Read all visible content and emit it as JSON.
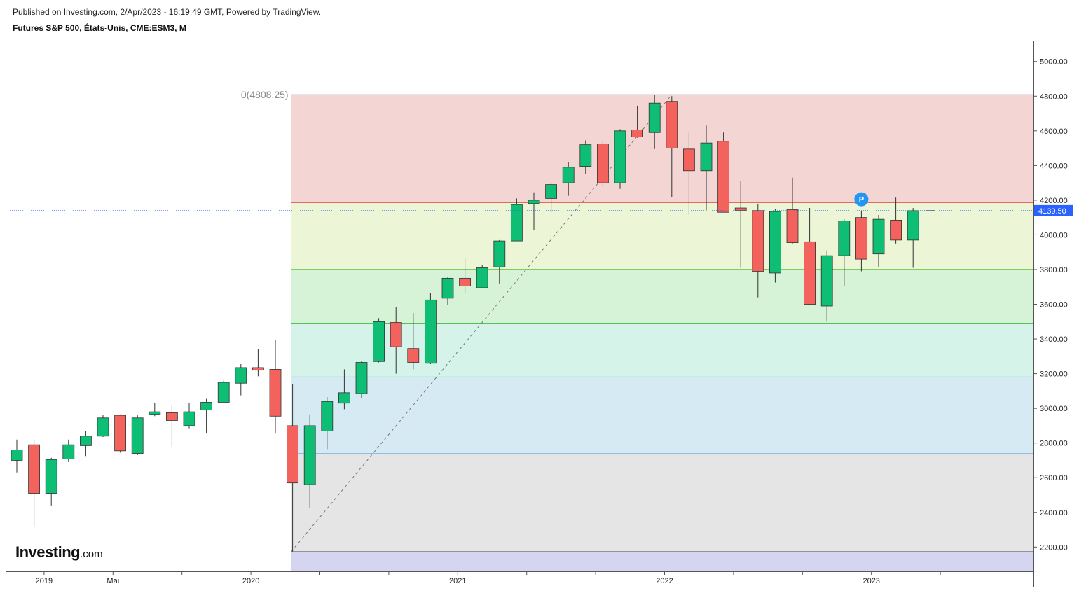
{
  "header": {
    "published": "Published on Investing.com, 2/Apr/2023 - 16:19:49 GMT, Powered by TradingView.",
    "symbol": "Futures S&P 500, États-Unis, CME:ESM3, M"
  },
  "logo": {
    "name": "Investing",
    "suffix": ".com"
  },
  "colors": {
    "up": "#0ebe74",
    "down": "#f3625c",
    "last_price_tag": "#2962ff"
  },
  "chart_data": {
    "type": "candlestick",
    "interval": "M",
    "ylim": [
      2060,
      5120
    ],
    "yticks": [
      2200,
      2400,
      2600,
      2800,
      3000,
      3200,
      3400,
      3600,
      3800,
      4000,
      4200,
      4400,
      4600,
      4800,
      5000
    ],
    "ytick_labels": [
      "2200.00",
      "2400.00",
      "2600.00",
      "2800.00",
      "3000.00",
      "3200.00",
      "3400.00",
      "3600.00",
      "3800.00",
      "4000.00",
      "4200.00",
      "4400.00",
      "4600.00",
      "4800.00",
      "5000.00"
    ],
    "x_labels": [
      {
        "label": "2019",
        "index": 2
      },
      {
        "label": "Mai",
        "index": 6
      },
      {
        "label": "2020",
        "index": 14
      },
      {
        "label": "2021",
        "index": 26
      },
      {
        "label": "2022",
        "index": 38
      },
      {
        "label": "2023",
        "index": 50
      }
    ],
    "last_price": 4139.5,
    "last_price_label": "4139.50",
    "marker": {
      "label": "P",
      "index": 49,
      "price": 4205
    },
    "fibonacci": {
      "high": 4808.25,
      "low": 2174,
      "high_label": "0(4808.25)",
      "start_index": 16,
      "levels": [
        {
          "price": 4808.25,
          "fill": "#f3d5d4",
          "line": "#9a9a9a"
        },
        {
          "price": 4186,
          "fill": "#ecf5d6",
          "line": "#e85450"
        },
        {
          "price": 3802,
          "fill": "#d6f3d8",
          "line": "#7ccf5a"
        },
        {
          "price": 3491,
          "fill": "#d6f3ea",
          "line": "#4cc45a"
        },
        {
          "price": 3181,
          "fill": "#d6eaf4",
          "line": "#3ec9a0"
        },
        {
          "price": 2738,
          "fill": "#e5e5e5",
          "line": "#4a90d0"
        },
        {
          "price": 2174,
          "fill": "#d5d5f2",
          "line": "#777777"
        }
      ],
      "fill_bottom": 2000,
      "trend_line": {
        "from_index": 16,
        "from_price": 2174,
        "to_index": 38,
        "to_price": 4808.25
      }
    },
    "candles": [
      {
        "o": 2700,
        "h": 2820,
        "l": 2630,
        "c": 2760
      },
      {
        "o": 2790,
        "h": 2815,
        "l": 2320,
        "c": 2510
      },
      {
        "o": 2510,
        "h": 2715,
        "l": 2440,
        "c": 2705
      },
      {
        "o": 2708,
        "h": 2820,
        "l": 2690,
        "c": 2790
      },
      {
        "o": 2785,
        "h": 2870,
        "l": 2725,
        "c": 2840
      },
      {
        "o": 2840,
        "h": 2960,
        "l": 2835,
        "c": 2945
      },
      {
        "o": 2960,
        "h": 2965,
        "l": 2745,
        "c": 2755
      },
      {
        "o": 2740,
        "h": 2960,
        "l": 2730,
        "c": 2945
      },
      {
        "o": 2965,
        "h": 3030,
        "l": 2955,
        "c": 2980
      },
      {
        "o": 2975,
        "h": 3020,
        "l": 2780,
        "c": 2930
      },
      {
        "o": 2900,
        "h": 3030,
        "l": 2885,
        "c": 2980
      },
      {
        "o": 2990,
        "h": 3055,
        "l": 2855,
        "c": 3035
      },
      {
        "o": 3035,
        "h": 3160,
        "l": 3035,
        "c": 3150
      },
      {
        "o": 3145,
        "h": 3255,
        "l": 3075,
        "c": 3235
      },
      {
        "o": 3235,
        "h": 3340,
        "l": 3185,
        "c": 3220
      },
      {
        "o": 3225,
        "h": 3395,
        "l": 2855,
        "c": 2955
      },
      {
        "o": 2900,
        "h": 3140,
        "l": 2175,
        "c": 2570
      },
      {
        "o": 2560,
        "h": 2965,
        "l": 2425,
        "c": 2900
      },
      {
        "o": 2870,
        "h": 3065,
        "l": 2765,
        "c": 3040
      },
      {
        "o": 3030,
        "h": 3225,
        "l": 2995,
        "c": 3090
      },
      {
        "o": 3085,
        "h": 3275,
        "l": 3060,
        "c": 3265
      },
      {
        "o": 3270,
        "h": 3520,
        "l": 3265,
        "c": 3500
      },
      {
        "o": 3495,
        "h": 3585,
        "l": 3200,
        "c": 3355
      },
      {
        "o": 3345,
        "h": 3550,
        "l": 3225,
        "c": 3265
      },
      {
        "o": 3260,
        "h": 3665,
        "l": 3255,
        "c": 3625
      },
      {
        "o": 3635,
        "h": 3755,
        "l": 3595,
        "c": 3750
      },
      {
        "o": 3750,
        "h": 3865,
        "l": 3665,
        "c": 3705
      },
      {
        "o": 3695,
        "h": 3825,
        "l": 3695,
        "c": 3810
      },
      {
        "o": 3815,
        "h": 3970,
        "l": 3720,
        "c": 3965
      },
      {
        "o": 3965,
        "h": 4210,
        "l": 3965,
        "c": 4175
      },
      {
        "o": 4180,
        "h": 4245,
        "l": 4030,
        "c": 4200
      },
      {
        "o": 4210,
        "h": 4300,
        "l": 4130,
        "c": 4290
      },
      {
        "o": 4300,
        "h": 4420,
        "l": 4225,
        "c": 4390
      },
      {
        "o": 4395,
        "h": 4545,
        "l": 4350,
        "c": 4520
      },
      {
        "o": 4525,
        "h": 4540,
        "l": 4280,
        "c": 4300
      },
      {
        "o": 4300,
        "h": 4610,
        "l": 4265,
        "c": 4600
      },
      {
        "o": 4605,
        "h": 4745,
        "l": 4560,
        "c": 4565
      },
      {
        "o": 4590,
        "h": 4808,
        "l": 4495,
        "c": 4760
      },
      {
        "o": 4770,
        "h": 4800,
        "l": 4220,
        "c": 4500
      },
      {
        "o": 4495,
        "h": 4590,
        "l": 4115,
        "c": 4370
      },
      {
        "o": 4370,
        "h": 4630,
        "l": 4140,
        "c": 4530
      },
      {
        "o": 4540,
        "h": 4590,
        "l": 4130,
        "c": 4130
      },
      {
        "o": 4155,
        "h": 4310,
        "l": 3810,
        "c": 4140
      },
      {
        "o": 4140,
        "h": 4180,
        "l": 3640,
        "c": 3790
      },
      {
        "o": 3780,
        "h": 4150,
        "l": 3725,
        "c": 4135
      },
      {
        "o": 4145,
        "h": 4330,
        "l": 3950,
        "c": 3955
      },
      {
        "o": 3960,
        "h": 4155,
        "l": 3595,
        "c": 3600
      },
      {
        "o": 3590,
        "h": 3910,
        "l": 3500,
        "c": 3880
      },
      {
        "o": 3880,
        "h": 4090,
        "l": 3705,
        "c": 4080
      },
      {
        "o": 4100,
        "h": 4140,
        "l": 3790,
        "c": 3860
      },
      {
        "o": 3890,
        "h": 4115,
        "l": 3815,
        "c": 4090
      },
      {
        "o": 4085,
        "h": 4215,
        "l": 3950,
        "c": 3970
      },
      {
        "o": 3970,
        "h": 4155,
        "l": 3810,
        "c": 4139.5
      }
    ]
  }
}
